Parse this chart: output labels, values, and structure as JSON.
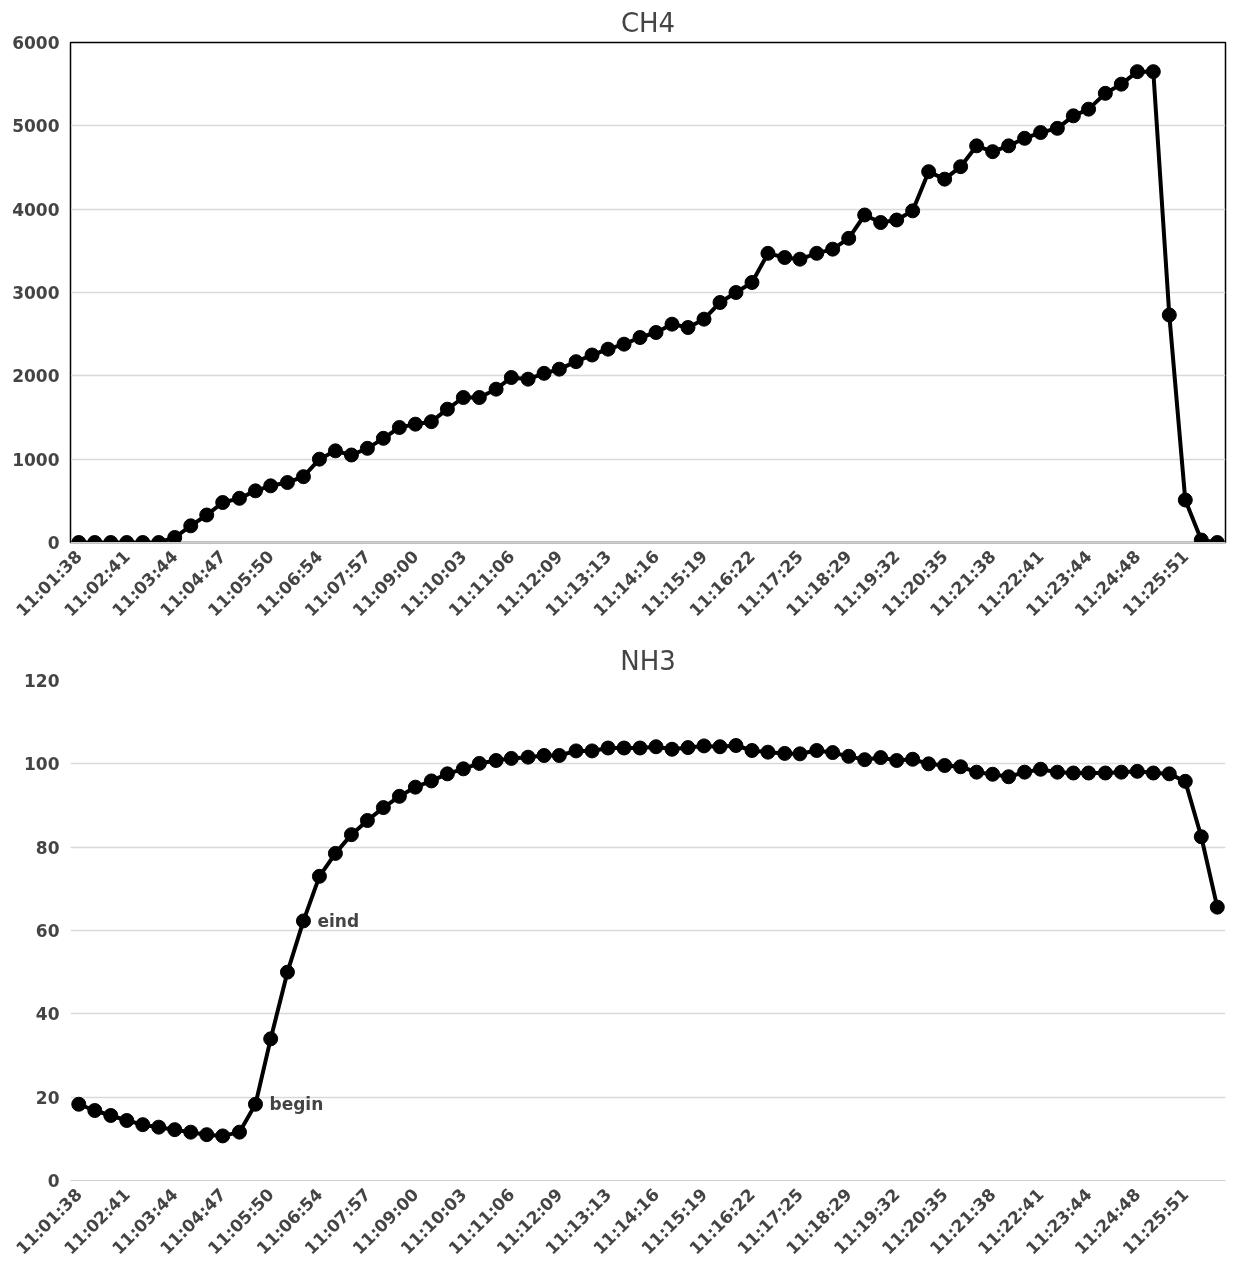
{
  "chart_data": [
    {
      "type": "line",
      "title": "CH4",
      "marker": "circle",
      "line_style": "solid",
      "grid": "y",
      "x": [
        11.02722,
        11.03306,
        11.03889,
        11.04472,
        11.05056,
        11.05639,
        11.06222,
        11.06806,
        11.07389,
        11.07972,
        11.08583,
        11.09167,
        11.09722,
        11.10333,
        11.10917,
        11.115,
        11.12083,
        11.12667,
        11.1325,
        11.13833,
        11.14417,
        11.15,
        11.15583,
        11.16167,
        11.1675,
        11.17333,
        11.17944,
        11.185,
        11.19111,
        11.19694,
        11.2025,
        11.20861,
        11.21444,
        11.22028,
        11.22611,
        11.23194,
        11.23778,
        11.24361,
        11.24944,
        11.25528,
        11.26111,
        11.26694,
        11.27278,
        11.27861,
        11.28472,
        11.29028,
        11.29639,
        11.30222,
        11.30806,
        11.31389,
        11.31972,
        11.32556,
        11.33139,
        11.33722,
        11.34306,
        11.34889,
        11.35472,
        11.36056,
        11.36639,
        11.37222,
        11.37806,
        11.38417,
        11.39,
        11.39556,
        11.40167,
        11.4075,
        11.41333,
        11.41917,
        11.425,
        11.43083,
        11.43667,
        11.4425
      ],
      "series": [
        {
          "color": "#000000",
          "values": [
            0,
            0,
            0,
            0,
            0,
            0,
            60,
            200,
            330,
            480,
            530,
            620,
            680,
            720,
            790,
            1000,
            1100,
            1050,
            1130,
            1250,
            1380,
            1420,
            1450,
            1600,
            1740,
            1740,
            1840,
            1980,
            1960,
            2030,
            2080,
            2170,
            2250,
            2320,
            2380,
            2460,
            2520,
            2620,
            2580,
            2680,
            2880,
            3000,
            3120,
            3470,
            3420,
            3400,
            3470,
            3520,
            3650,
            3930,
            3840,
            3870,
            3980,
            4450,
            4360,
            4510,
            4760,
            4690,
            4760,
            4850,
            4920,
            4970,
            5120,
            5200,
            5390,
            5500,
            5650,
            5650,
            2730,
            510,
            30,
            0
          ]
        }
      ],
      "xlim": [
        11.0242,
        11.4455
      ],
      "xticks": [
        {
          "value": 11.02722,
          "label": "11:01:38"
        },
        {
          "value": 11.04472,
          "label": "11:02:41"
        },
        {
          "value": 11.06222,
          "label": "11:03:44"
        },
        {
          "value": 11.07972,
          "label": "11:04:47"
        },
        {
          "value": 11.09722,
          "label": "11:05:50"
        },
        {
          "value": 11.115,
          "label": "11:06:54"
        },
        {
          "value": 11.1325,
          "label": "11:07:57"
        },
        {
          "value": 11.15,
          "label": "11:09:00"
        },
        {
          "value": 11.1675,
          "label": "11:10:03"
        },
        {
          "value": 11.185,
          "label": "11:11:06"
        },
        {
          "value": 11.2025,
          "label": "11:12:09"
        },
        {
          "value": 11.22028,
          "label": "11:13:13"
        },
        {
          "value": 11.23778,
          "label": "11:14:16"
        },
        {
          "value": 11.25528,
          "label": "11:15:19"
        },
        {
          "value": 11.27278,
          "label": "11:16:22"
        },
        {
          "value": 11.29028,
          "label": "11:17:25"
        },
        {
          "value": 11.30806,
          "label": "11:18:29"
        },
        {
          "value": 11.32556,
          "label": "11:19:32"
        },
        {
          "value": 11.34306,
          "label": "11:20:35"
        },
        {
          "value": 11.36056,
          "label": "11:21:38"
        },
        {
          "value": 11.37806,
          "label": "11:22:41"
        },
        {
          "value": 11.39556,
          "label": "11:23:44"
        },
        {
          "value": 11.41333,
          "label": "11:24:48"
        },
        {
          "value": 11.43083,
          "label": "11:25:51"
        }
      ],
      "ylim": [
        0,
        6000
      ],
      "yticks": [
        0,
        1000,
        2000,
        3000,
        4000,
        5000,
        6000
      ]
    },
    {
      "type": "line",
      "title": "NH3",
      "marker": "circle",
      "line_style": "solid",
      "grid": "y",
      "x": [
        11.02722,
        11.03306,
        11.03889,
        11.04472,
        11.05056,
        11.05639,
        11.06222,
        11.06806,
        11.07389,
        11.07972,
        11.08583,
        11.09167,
        11.09722,
        11.10333,
        11.10917,
        11.115,
        11.12083,
        11.12667,
        11.1325,
        11.13833,
        11.14417,
        11.15,
        11.15583,
        11.16167,
        11.1675,
        11.17333,
        11.17944,
        11.185,
        11.19111,
        11.19694,
        11.2025,
        11.20861,
        11.21444,
        11.22028,
        11.22611,
        11.23194,
        11.23778,
        11.24361,
        11.24944,
        11.25528,
        11.26111,
        11.26694,
        11.27278,
        11.27861,
        11.28472,
        11.29028,
        11.29639,
        11.30222,
        11.30806,
        11.31389,
        11.31972,
        11.32556,
        11.33139,
        11.33722,
        11.34306,
        11.34889,
        11.35472,
        11.36056,
        11.36639,
        11.37222,
        11.37806,
        11.38417,
        11.39,
        11.39556,
        11.40167,
        11.4075,
        11.41333,
        11.41917,
        11.425,
        11.43083,
        11.43667,
        11.4425
      ],
      "series": [
        {
          "color": "#000000",
          "values": [
            18.3,
            16.8,
            15.6,
            14.4,
            13.4,
            12.8,
            12.2,
            11.6,
            11,
            10.7,
            11.6,
            18.3,
            34,
            50,
            62.3,
            73,
            78.5,
            83,
            86.4,
            89.5,
            92.2,
            94.4,
            95.9,
            97.6,
            98.8,
            100.1,
            100.8,
            101.3,
            101.6,
            102,
            102,
            103.1,
            103.1,
            103.8,
            103.8,
            103.8,
            104.1,
            103.5,
            103.9,
            104.3,
            104.1,
            104.4,
            103.2,
            102.8,
            102.5,
            102.4,
            103.2,
            102.7,
            101.8,
            101,
            101.5,
            100.8,
            101.1,
            100,
            99.6,
            99.3,
            98,
            97.5,
            96.9,
            98,
            98.7,
            98,
            97.8,
            97.8,
            97.8,
            98,
            98.2,
            97.8,
            97.6,
            95.8,
            82.5,
            65.6
          ]
        }
      ],
      "annotations": [
        {
          "text": "begin",
          "x": 11.09167,
          "y": 18.3
        },
        {
          "text": "eind",
          "x": 11.10917,
          "y": 62.3
        }
      ],
      "xlim": [
        11.0242,
        11.4455
      ],
      "xticks": [
        {
          "value": 11.02722,
          "label": "11:01:38"
        },
        {
          "value": 11.04472,
          "label": "11:02:41"
        },
        {
          "value": 11.06222,
          "label": "11:03:44"
        },
        {
          "value": 11.07972,
          "label": "11:04:47"
        },
        {
          "value": 11.09722,
          "label": "11:05:50"
        },
        {
          "value": 11.115,
          "label": "11:06:54"
        },
        {
          "value": 11.1325,
          "label": "11:07:57"
        },
        {
          "value": 11.15,
          "label": "11:09:00"
        },
        {
          "value": 11.1675,
          "label": "11:10:03"
        },
        {
          "value": 11.185,
          "label": "11:11:06"
        },
        {
          "value": 11.2025,
          "label": "11:12:09"
        },
        {
          "value": 11.22028,
          "label": "11:13:13"
        },
        {
          "value": 11.23778,
          "label": "11:14:16"
        },
        {
          "value": 11.25528,
          "label": "11:15:19"
        },
        {
          "value": 11.27278,
          "label": "11:16:22"
        },
        {
          "value": 11.29028,
          "label": "11:17:25"
        },
        {
          "value": 11.30806,
          "label": "11:18:29"
        },
        {
          "value": 11.32556,
          "label": "11:19:32"
        },
        {
          "value": 11.34306,
          "label": "11:20:35"
        },
        {
          "value": 11.36056,
          "label": "11:21:38"
        },
        {
          "value": 11.37806,
          "label": "11:22:41"
        },
        {
          "value": 11.39556,
          "label": "11:23:44"
        },
        {
          "value": 11.41333,
          "label": "11:24:48"
        },
        {
          "value": 11.43083,
          "label": "11:25:51"
        }
      ],
      "ylim": [
        0,
        120
      ],
      "yticks": [
        0,
        20,
        40,
        60,
        80,
        100,
        120
      ]
    }
  ]
}
